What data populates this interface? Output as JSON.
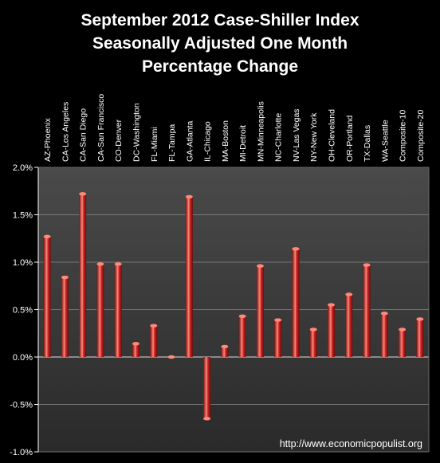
{
  "chart_data": {
    "type": "bar",
    "title": "September 2012 Case-Shiller Index Seasonally Adjusted One Month Percentage Change",
    "title_lines": [
      "September 2012 Case-Shiller Index",
      "Seasonally Adjusted One Month",
      "Percentage Change"
    ],
    "xlabel": "",
    "ylabel": "",
    "ylim": [
      -1.0,
      2.0
    ],
    "yticks": [
      -1.0,
      -0.5,
      0.0,
      0.5,
      1.0,
      1.5,
      2.0
    ],
    "ytick_labels": [
      "-1.0%",
      "-0.5%",
      "0.0%",
      "0.5%",
      "1.0%",
      "1.5%",
      "2.0%"
    ],
    "grid": "horizontal",
    "legend": "none",
    "categories": [
      "AZ-Phoenix",
      "CA-Los Angeles",
      "CA-San Diego",
      "CA-San Francisco",
      "CO-Denver",
      "DC-Washington",
      "FL-Miami",
      "FL-Tampa",
      "GA-Atlanta",
      "IL-Chicago",
      "MA-Boston",
      "MI-Detroit",
      "MN-Minneapolis",
      "NC-Charlotte",
      "NV-Las Vegas",
      "NY-New York",
      "OH-Cleveland",
      "OR-Portland",
      "TX-Dallas",
      "WA-Seattle",
      "Composite-10",
      "Composite-20"
    ],
    "values": [
      1.27,
      0.84,
      1.72,
      0.98,
      0.98,
      0.14,
      0.33,
      0.0,
      1.69,
      -0.65,
      0.11,
      0.43,
      0.96,
      0.39,
      1.14,
      0.29,
      0.55,
      0.66,
      0.97,
      0.46,
      0.29,
      0.4
    ],
    "colors": {
      "bar": "#cc2222",
      "bar_light": "#ff8a7a",
      "bar_dark": "#7a0d0d",
      "axis": "#ffffff",
      "grid": "#8a8a8a",
      "plot_bg": "#3a3a3a"
    }
  },
  "credit": "http://www.economicpopulist.org"
}
